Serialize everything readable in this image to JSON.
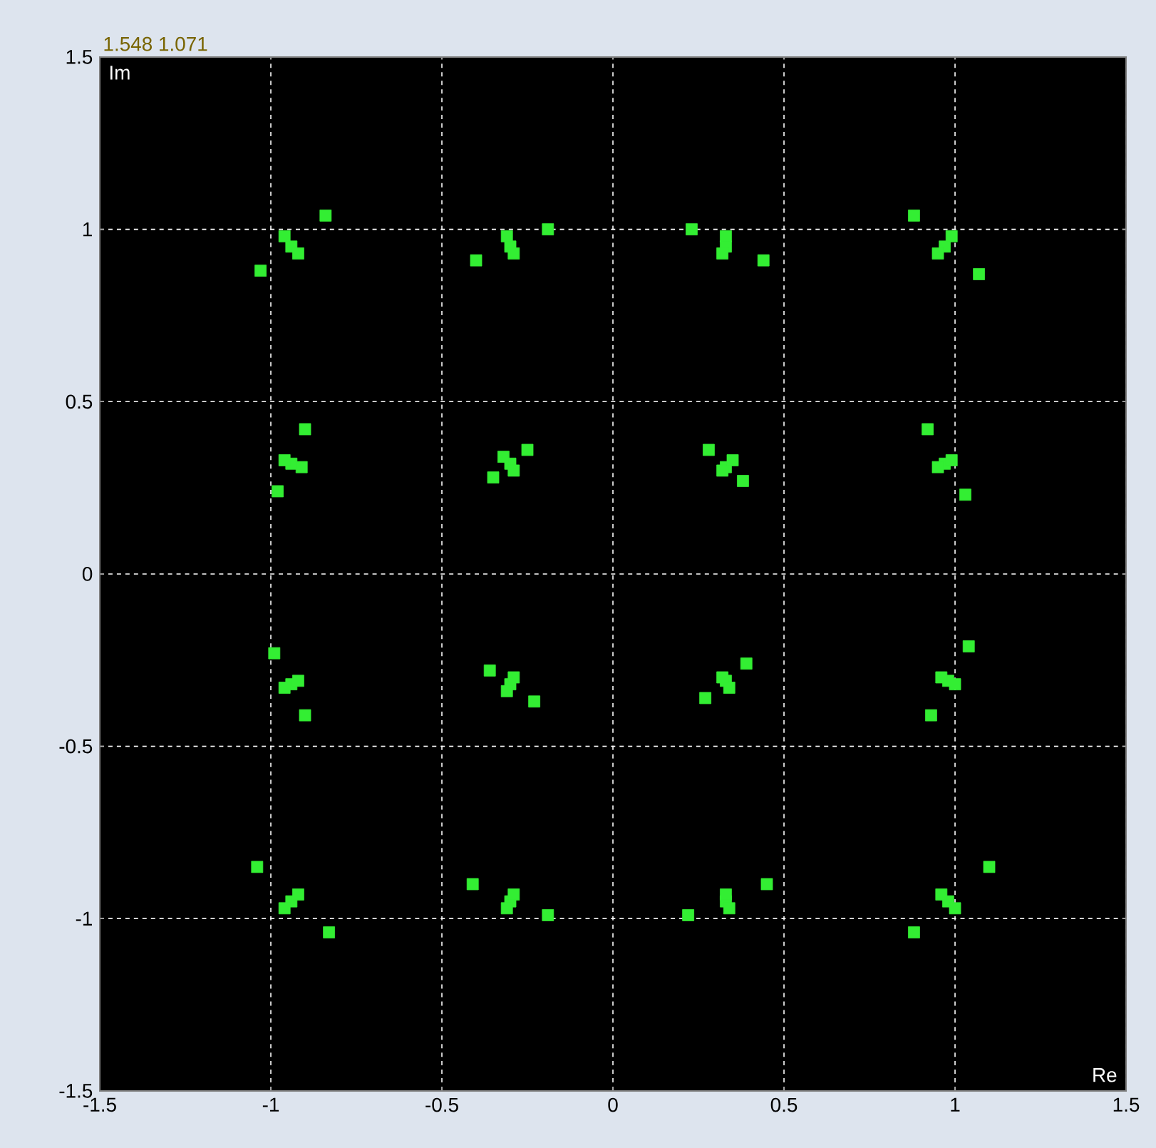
{
  "chart_data": {
    "type": "scatter",
    "xlabel": "Re",
    "ylabel": "Im",
    "annotations": [
      "1.548 1.071"
    ],
    "x": [
      -1.03,
      -0.84,
      -0.94,
      -0.96,
      -0.92,
      -0.4,
      -0.19,
      -0.3,
      -0.29,
      -0.31,
      0.23,
      0.44,
      0.33,
      0.32,
      0.33,
      0.88,
      1.07,
      0.97,
      0.95,
      0.99,
      -0.98,
      -0.9,
      -0.94,
      -0.91,
      -0.96,
      -0.35,
      -0.25,
      -0.3,
      -0.29,
      -0.32,
      0.28,
      0.38,
      0.33,
      0.32,
      0.35,
      0.92,
      1.03,
      0.97,
      0.95,
      0.99,
      -0.99,
      -0.9,
      -0.94,
      -0.92,
      -0.96,
      -0.36,
      -0.23,
      -0.3,
      -0.31,
      -0.29,
      0.27,
      0.39,
      0.33,
      0.34,
      0.32,
      0.93,
      1.04,
      0.98,
      1.0,
      0.96,
      -1.04,
      -0.83,
      -0.94,
      -0.96,
      -0.92,
      -0.41,
      -0.19,
      -0.3,
      -0.31,
      -0.29,
      0.22,
      0.45,
      0.33,
      0.34,
      0.33,
      0.88,
      1.1,
      0.98,
      1.0,
      0.96
    ],
    "values": [
      0.88,
      1.04,
      0.95,
      0.98,
      0.93,
      0.91,
      1.0,
      0.95,
      0.93,
      0.98,
      1.0,
      0.91,
      0.95,
      0.93,
      0.98,
      1.04,
      0.87,
      0.95,
      0.93,
      0.98,
      0.24,
      0.42,
      0.32,
      0.31,
      0.33,
      0.28,
      0.36,
      0.32,
      0.3,
      0.34,
      0.36,
      0.27,
      0.31,
      0.3,
      0.33,
      0.42,
      0.23,
      0.32,
      0.31,
      0.33,
      -0.23,
      -0.41,
      -0.32,
      -0.31,
      -0.33,
      -0.28,
      -0.37,
      -0.32,
      -0.34,
      -0.3,
      -0.36,
      -0.26,
      -0.31,
      -0.33,
      -0.3,
      -0.41,
      -0.21,
      -0.31,
      -0.32,
      -0.3,
      -0.85,
      -1.04,
      -0.95,
      -0.97,
      -0.93,
      -0.9,
      -0.99,
      -0.95,
      -0.97,
      -0.93,
      -0.99,
      -0.9,
      -0.95,
      -0.97,
      -0.93,
      -1.04,
      -0.85,
      -0.95,
      -0.97,
      -0.93
    ],
    "color": "#33ee33",
    "marker": "square",
    "grid": true,
    "xlim": [
      -1.5,
      1.5
    ],
    "ylim": [
      -1.5,
      1.5
    ],
    "xticks": [
      -1.5,
      -1,
      -0.5,
      0,
      0.5,
      1,
      1.5
    ],
    "yticks": [
      -1.5,
      -1,
      -0.5,
      0,
      0.5,
      1,
      1.5
    ]
  }
}
